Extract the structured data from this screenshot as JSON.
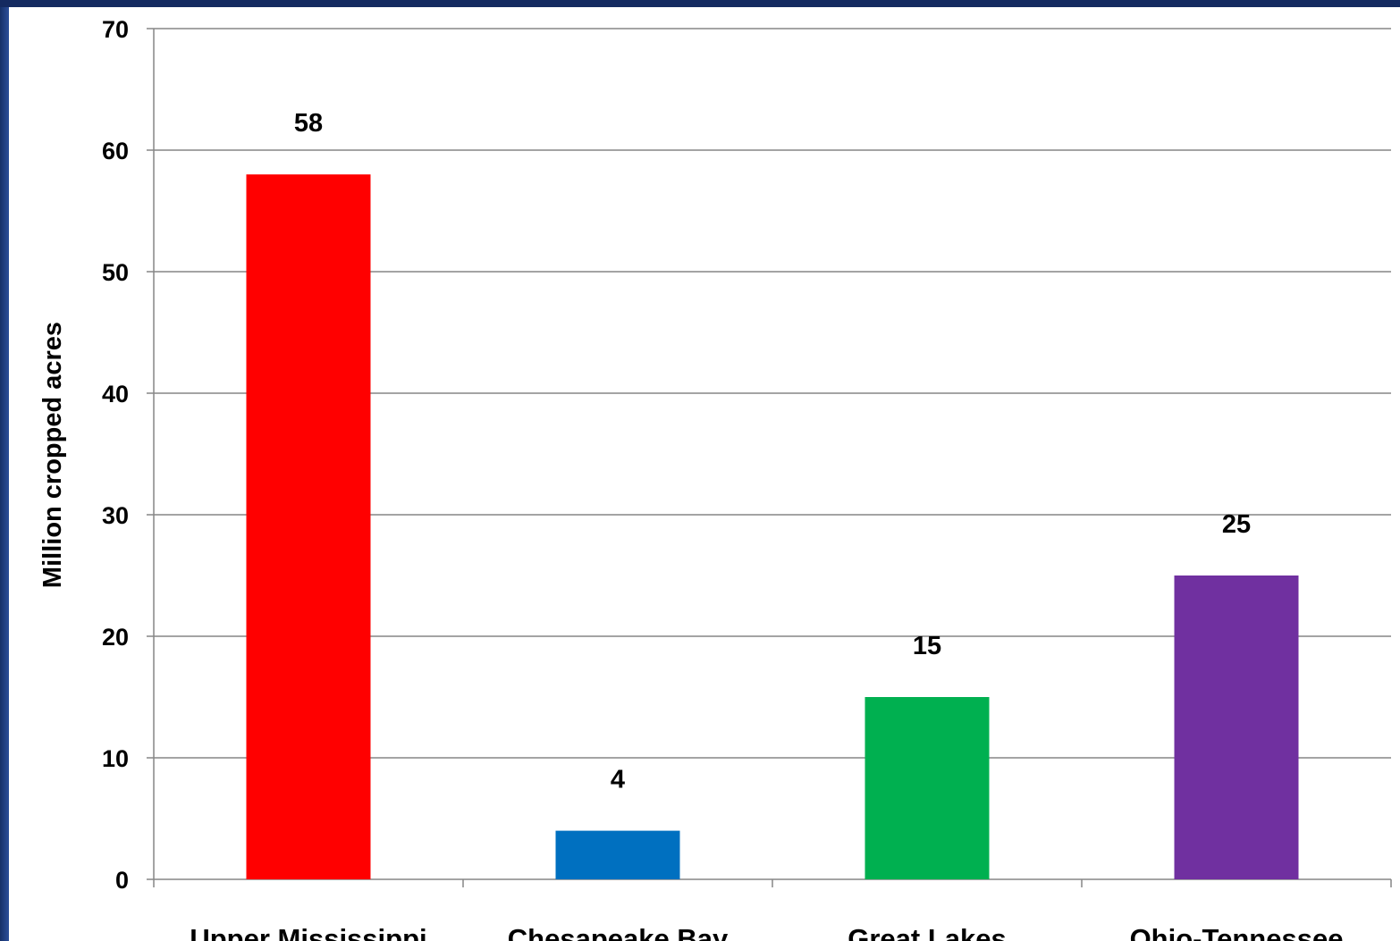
{
  "chart_data": {
    "type": "bar",
    "categories": [
      "Upper Mississippi",
      "Chesapeake Bay",
      "Great Lakes",
      "Ohio-Tennessee"
    ],
    "values": [
      58,
      4,
      15,
      25
    ],
    "data_labels": [
      "58",
      "4",
      "15",
      "25"
    ],
    "colors": [
      "#ff0000",
      "#0070c0",
      "#00b050",
      "#7030a0"
    ],
    "ylabel": "Million cropped acres",
    "ylim": [
      0,
      70
    ],
    "yticks": [
      0,
      10,
      20,
      30,
      40,
      50,
      60,
      70
    ],
    "grid": true,
    "legend": "none"
  }
}
